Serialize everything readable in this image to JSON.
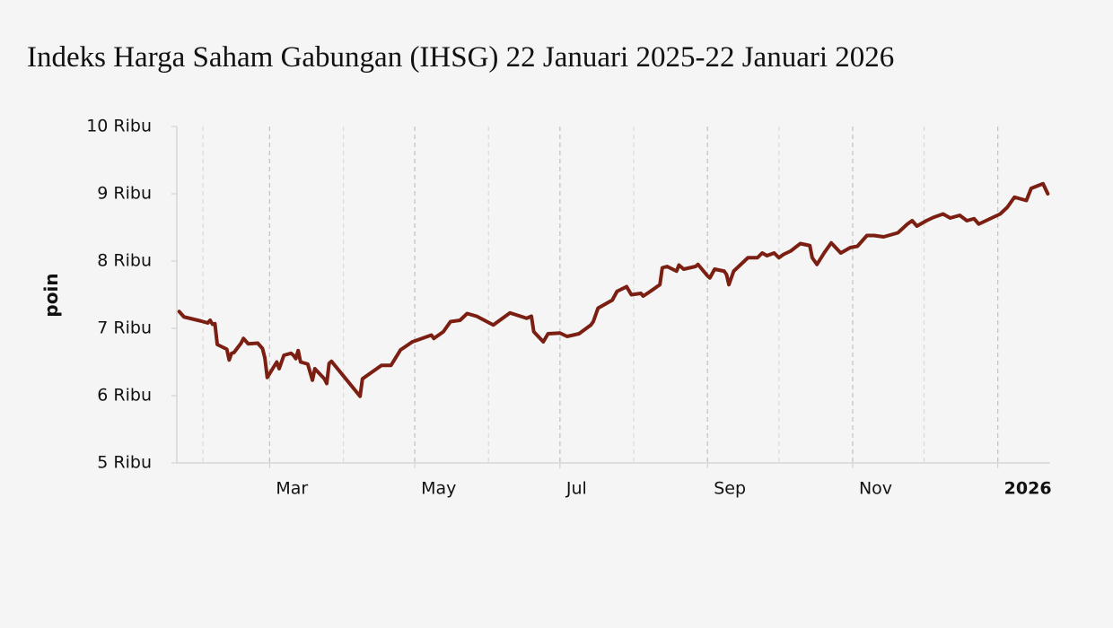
{
  "chart_data": {
    "type": "line",
    "title": "Indeks Harga Saham Gabungan (IHSG) 22 Januari 2025-22 Januari 2026",
    "y_label": "poin",
    "xlim": [
      "2025-01-21",
      "2026-01-23"
    ],
    "xticks": [
      {
        "value": "2025-03-01",
        "label": "Mar"
      },
      {
        "value": "2025-05-01",
        "label": "May"
      },
      {
        "value": "2025-07-01",
        "label": "Jul"
      },
      {
        "value": "2025-09-01",
        "label": "Sep"
      },
      {
        "value": "2025-11-01",
        "label": "Nov"
      },
      {
        "value": "2026-01-01",
        "label": "2026"
      }
    ],
    "xminorticks": [
      "2025-02-01",
      "2025-04-01",
      "2025-06-01",
      "2025-08-01",
      "2025-10-01",
      "2025-12-01"
    ],
    "ylim": [
      5000,
      10000
    ],
    "yticks": [
      {
        "value": 5000,
        "label": "5 Ribu"
      },
      {
        "value": 6000,
        "label": "6 Ribu"
      },
      {
        "value": 7000,
        "label": "7 Ribu"
      },
      {
        "value": 8000,
        "label": "8 Ribu"
      },
      {
        "value": 9000,
        "label": "9 Ribu"
      },
      {
        "value": 10000,
        "label": "10 Ribu"
      }
    ],
    "grid": true,
    "x": [
      "2025-01-22",
      "2025-01-24",
      "2025-01-31",
      "2025-02-03",
      "2025-02-04",
      "2025-02-05",
      "2025-02-06",
      "2025-02-07",
      "2025-02-11",
      "2025-02-12",
      "2025-02-13",
      "2025-02-14",
      "2025-02-17",
      "2025-02-18",
      "2025-02-20",
      "2025-02-24",
      "2025-02-26",
      "2025-02-27",
      "2025-02-28",
      "2025-03-04",
      "2025-03-05",
      "2025-03-07",
      "2025-03-10",
      "2025-03-11",
      "2025-03-12",
      "2025-03-13",
      "2025-03-14",
      "2025-03-17",
      "2025-03-19",
      "2025-03-20",
      "2025-03-24",
      "2025-03-25",
      "2025-03-26",
      "2025-03-27",
      "2025-04-08",
      "2025-04-09",
      "2025-04-17",
      "2025-04-21",
      "2025-04-25",
      "2025-04-30",
      "2025-05-08",
      "2025-05-09",
      "2025-05-13",
      "2025-05-16",
      "2025-05-20",
      "2025-05-23",
      "2025-05-27",
      "2025-06-03",
      "2025-06-10",
      "2025-06-17",
      "2025-06-19",
      "2025-06-20",
      "2025-06-24",
      "2025-06-26",
      "2025-07-01",
      "2025-07-04",
      "2025-07-09",
      "2025-07-14",
      "2025-07-15",
      "2025-07-17",
      "2025-07-21",
      "2025-07-23",
      "2025-07-25",
      "2025-07-29",
      "2025-07-31",
      "2025-08-04",
      "2025-08-05",
      "2025-08-08",
      "2025-08-12",
      "2025-08-13",
      "2025-08-15",
      "2025-08-19",
      "2025-08-20",
      "2025-08-22",
      "2025-08-27",
      "2025-08-28",
      "2025-09-01",
      "2025-09-02",
      "2025-09-04",
      "2025-09-08",
      "2025-09-09",
      "2025-09-10",
      "2025-09-12",
      "2025-09-15",
      "2025-09-18",
      "2025-09-22",
      "2025-09-24",
      "2025-09-26",
      "2025-09-29",
      "2025-10-01",
      "2025-10-03",
      "2025-10-06",
      "2025-10-10",
      "2025-10-14",
      "2025-10-15",
      "2025-10-17",
      "2025-10-20",
      "2025-10-23",
      "2025-10-27",
      "2025-10-31",
      "2025-11-03",
      "2025-11-07",
      "2025-11-10",
      "2025-11-14",
      "2025-11-18",
      "2025-11-20",
      "2025-11-24",
      "2025-11-26",
      "2025-11-28",
      "2025-12-02",
      "2025-12-05",
      "2025-12-09",
      "2025-12-12",
      "2025-12-16",
      "2025-12-19",
      "2025-12-22",
      "2025-12-24",
      "2025-12-30",
      "2026-01-02",
      "2026-01-05",
      "2026-01-08",
      "2026-01-13",
      "2026-01-15",
      "2026-01-20",
      "2026-01-22"
    ],
    "series": [
      {
        "name": "IHSG",
        "color": "#7a1f12",
        "values": [
          7250,
          7170,
          7110,
          7080,
          7120,
          7060,
          7070,
          6760,
          6690,
          6530,
          6630,
          6640,
          6780,
          6850,
          6770,
          6780,
          6700,
          6560,
          6270,
          6500,
          6400,
          6600,
          6630,
          6600,
          6550,
          6670,
          6500,
          6470,
          6230,
          6400,
          6250,
          6180,
          6480,
          6510,
          5990,
          6250,
          6450,
          6450,
          6680,
          6800,
          6900,
          6850,
          6950,
          7100,
          7120,
          7220,
          7180,
          7050,
          7230,
          7150,
          7180,
          6950,
          6800,
          6920,
          6930,
          6880,
          6920,
          7050,
          7100,
          7300,
          7380,
          7420,
          7550,
          7620,
          7500,
          7520,
          7480,
          7550,
          7650,
          7900,
          7920,
          7850,
          7940,
          7880,
          7920,
          7950,
          7780,
          7750,
          7880,
          7850,
          7800,
          7650,
          7850,
          7950,
          8050,
          8050,
          8120,
          8080,
          8120,
          8050,
          8100,
          8150,
          8260,
          8230,
          8050,
          7950,
          8120,
          8270,
          8120,
          8200,
          8220,
          8380,
          8380,
          8360,
          8400,
          8420,
          8550,
          8600,
          8520,
          8600,
          8650,
          8700,
          8640,
          8680,
          8600,
          8630,
          8550,
          8650,
          8700,
          8800,
          8950,
          8900,
          9080,
          9150,
          9000
        ]
      }
    ]
  }
}
